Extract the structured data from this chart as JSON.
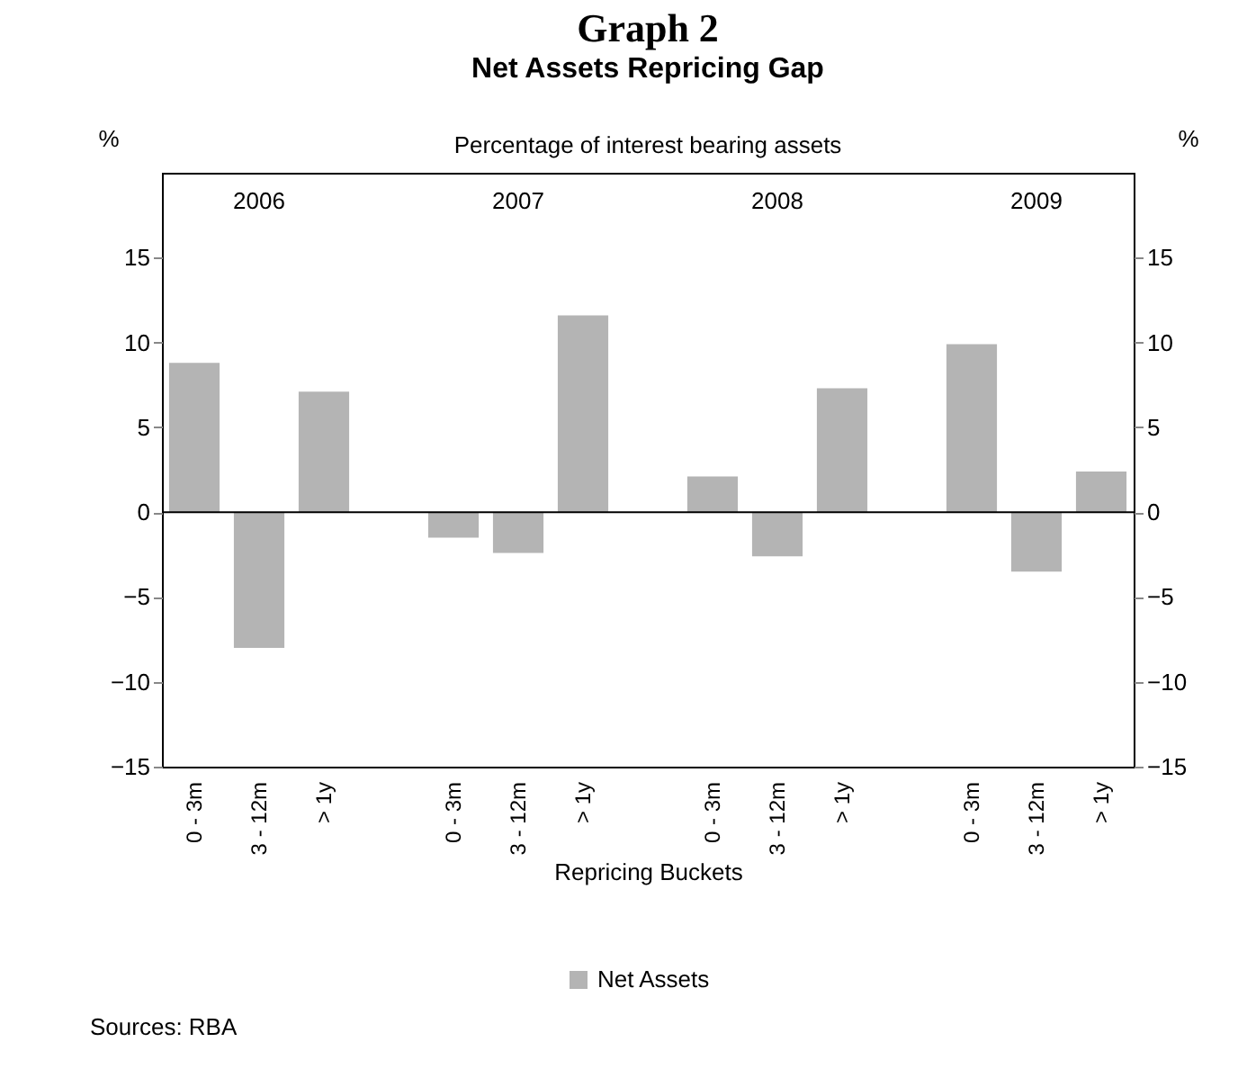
{
  "chart_data": {
    "type": "bar",
    "title": "Graph 2",
    "subtitle": "Net Assets Repricing Gap",
    "annotations": [
      "Percentage of interest bearing assets",
      "2006",
      "2007",
      "2008",
      "2009",
      "Sources: RBA"
    ],
    "xlabel": "Repricing Buckets",
    "ylabel": "%",
    "y2label": "%",
    "categories": [
      "0 - 3m",
      "3 - 12m",
      "> 1y",
      null,
      "0 - 3m",
      "3 - 12m",
      "> 1y",
      null,
      "0 - 3m",
      "3 - 12m",
      "> 1y",
      null,
      "0 - 3m",
      "3 - 12m",
      "> 1y"
    ],
    "series": [
      {
        "name": "Net Assets",
        "color": "#b4b4b4",
        "values": [
          8.8,
          -8,
          7.1,
          null,
          -1.5,
          -2.4,
          11.6,
          null,
          2.1,
          -2.6,
          7.3,
          null,
          9.9,
          -3.5,
          2.4
        ]
      }
    ],
    "ylim": [
      -15,
      20
    ],
    "yticks": [
      -15,
      -10,
      -5,
      0,
      5,
      10,
      15
    ],
    "y2lim": [
      -15,
      20
    ],
    "y2ticks": [
      -15,
      -10,
      -5,
      0,
      5,
      10,
      15
    ],
    "legend": "bottom"
  }
}
